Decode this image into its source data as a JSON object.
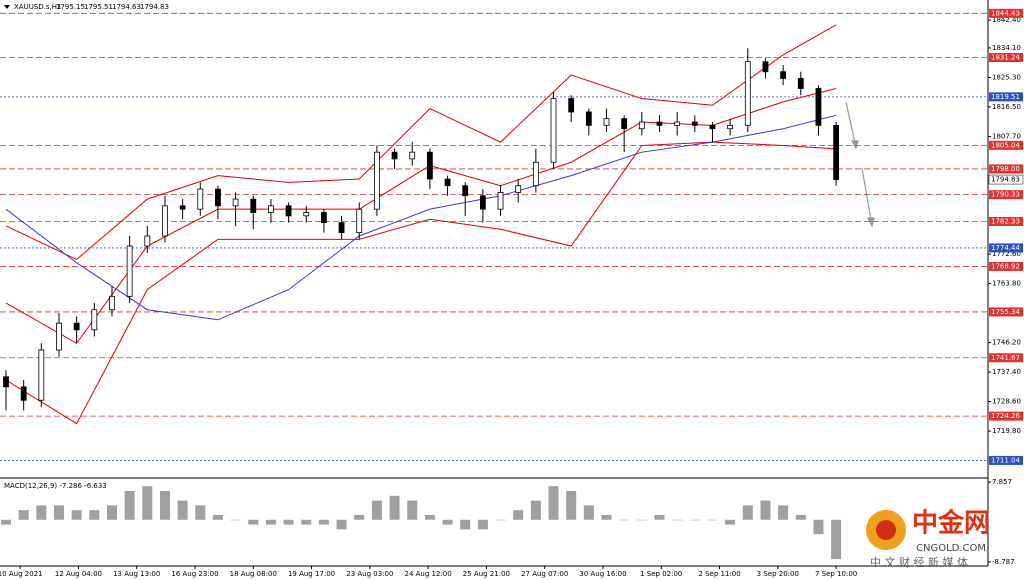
{
  "chart_data": [
    {
      "type": "candlestick",
      "symbol": "XAUUSD.s,H1",
      "quote": [
        1795.15,
        1795.51,
        1794.63,
        1794.83
      ],
      "open": [
        1736,
        1733,
        1729,
        1744,
        1752,
        1750,
        1756,
        1760,
        1775,
        1778,
        1787,
        1786,
        1792,
        1787,
        1789,
        1785,
        1787,
        1784,
        1785,
        1782,
        1779,
        1786,
        1803,
        1801,
        1803,
        1795,
        1793,
        1790,
        1786,
        1791,
        1793,
        1800,
        1819,
        1815,
        1811,
        1813,
        1810,
        1812,
        1811,
        1812,
        1811,
        1810,
        1811,
        1830,
        1827,
        1825,
        1822,
        1811
      ],
      "high": [
        1738,
        1735,
        1746,
        1755,
        1754,
        1758,
        1763,
        1778,
        1781,
        1790,
        1789,
        1794,
        1793,
        1791,
        1790,
        1789,
        1788,
        1787,
        1786,
        1784,
        1788,
        1805,
        1804,
        1806,
        1804,
        1796,
        1794,
        1792,
        1793,
        1795,
        1804,
        1821,
        1820,
        1816,
        1816,
        1814,
        1815,
        1814,
        1815,
        1814,
        1812,
        1813,
        1834,
        1831,
        1829,
        1827,
        1823,
        1812
      ],
      "low": [
        1726,
        1726,
        1727,
        1742,
        1746,
        1748,
        1754,
        1758,
        1773,
        1776,
        1783,
        1784,
        1783,
        1781,
        1780,
        1782,
        1782,
        1782,
        1779,
        1777,
        1777,
        1784,
        1798,
        1799,
        1792,
        1790,
        1784,
        1782,
        1784,
        1788,
        1791,
        1798,
        1812,
        1808,
        1809,
        1803,
        1808,
        1809,
        1808,
        1809,
        1806,
        1808,
        1809,
        1825,
        1823,
        1820,
        1808,
        1793
      ],
      "close": [
        1733,
        1729,
        1744,
        1752,
        1750,
        1756,
        1760,
        1775,
        1778,
        1787,
        1786,
        1792,
        1787,
        1789,
        1785,
        1787,
        1784,
        1785,
        1782,
        1779,
        1786,
        1803,
        1801,
        1803,
        1795,
        1793,
        1790,
        1786,
        1791,
        1793,
        1800,
        1819,
        1815,
        1811,
        1813,
        1810,
        1812,
        1811,
        1812,
        1811,
        1810,
        1811,
        1830,
        1827,
        1825,
        1822,
        1811,
        1794.83
      ],
      "lines": [
        {
          "color": "#e00000",
          "x": [
            0,
            4,
            8,
            12,
            16,
            20,
            24,
            28,
            32,
            36,
            40,
            44,
            47
          ],
          "values": [
            1781,
            1771,
            1789,
            1796,
            1794,
            1795,
            1816,
            1806,
            1826,
            1819,
            1817,
            1832,
            1841
          ]
        },
        {
          "color": "#e00000",
          "x": [
            0,
            4,
            8,
            12,
            16,
            20,
            24,
            28,
            32,
            36,
            40,
            44,
            47
          ],
          "values": [
            1758,
            1746,
            1775,
            1786,
            1786,
            1786,
            1799,
            1793,
            1800,
            1812,
            1811,
            1818,
            1822
          ]
        },
        {
          "color": "#e00000",
          "x": [
            0,
            4,
            8,
            12,
            16,
            20,
            24,
            28,
            32,
            36,
            40,
            44,
            47
          ],
          "values": [
            1735,
            1722,
            1762,
            1777,
            1777,
            1777,
            1783,
            1780,
            1775,
            1805,
            1806,
            1805,
            1804
          ]
        },
        {
          "color": "#3a3ad0",
          "x": [
            0,
            4,
            8,
            12,
            16,
            20,
            24,
            28,
            32,
            36,
            40,
            44,
            47
          ],
          "values": [
            1786,
            1770,
            1756,
            1753,
            1762,
            1778,
            1786,
            1790,
            1796,
            1803,
            1806,
            1810,
            1814
          ]
        }
      ],
      "levels": [
        1844.43,
        1831.24,
        1819.51,
        1805.04,
        1798.0,
        1790.33,
        1782.33,
        1774.44,
        1768.92,
        1755.34,
        1741.67,
        1724.26,
        1711.04
      ],
      "level_labels": [
        "1844.43",
        "1831.24",
        "1819.51",
        "1805.04",
        "1798.00",
        "1790.33",
        "1782.33",
        "1774.44",
        "1768.92",
        "1755.34",
        "1741.67",
        "1724.26",
        "1711.04"
      ],
      "level_colors": [
        "#e03030",
        "#e03030",
        "#3050c0",
        "#e03030",
        "#e03030",
        "#e03030",
        "#e03030",
        "#3050c0",
        "#e03030",
        "#e03030",
        "#e03030",
        "#e03030",
        "#3050c0"
      ],
      "xlim": [
        -0.34,
        55.6
      ],
      "ylim": [
        1705.8,
        1848.4
      ],
      "yticks": [
        {
          "value": 1842.4,
          "label": "1842.40"
        },
        {
          "value": 1834.1,
          "label": "1834.10"
        },
        {
          "value": 1825.3,
          "label": "1825.30"
        },
        {
          "value": 1816.5,
          "label": "1816.50"
        },
        {
          "value": 1807.7,
          "label": "1807.70"
        },
        {
          "value": 1772.6,
          "label": "1772.60"
        },
        {
          "value": 1763.8,
          "label": "1763.80"
        },
        {
          "value": 1746.2,
          "label": "1746.20"
        },
        {
          "value": 1737.4,
          "label": "1737.40"
        },
        {
          "value": 1728.6,
          "label": "1728.60"
        },
        {
          "value": 1719.8,
          "label": "1719.80"
        }
      ],
      "xticks": [
        {
          "value": 0.8,
          "label": "10 Aug 2021"
        },
        {
          "value": 4.1,
          "label": "12 Aug 04:00"
        },
        {
          "value": 7.4,
          "label": "13 Aug 13:00"
        },
        {
          "value": 10.7,
          "label": "16 Aug 23:00"
        },
        {
          "value": 14,
          "label": "18 Aug 08:00"
        },
        {
          "value": 17.3,
          "label": "19 Aug 17:00"
        },
        {
          "value": 20.6,
          "label": "23 Aug 03:00"
        },
        {
          "value": 23.9,
          "label": "24 Aug 12:00"
        },
        {
          "value": 27.2,
          "label": "25 Aug 21:00"
        },
        {
          "value": 30.5,
          "label": "27 Aug 07:00"
        },
        {
          "value": 33.8,
          "label": "30 Aug 16:00"
        },
        {
          "value": 37.1,
          "label": "1 Sep 02:00"
        },
        {
          "value": 40.4,
          "label": "2 Sep 11:00"
        },
        {
          "value": 43.7,
          "label": "3 Sep 20:00"
        },
        {
          "value": 47,
          "label": "7 Sep 10:00"
        }
      ]
    },
    {
      "type": "macd",
      "title": "MACD(12,26,9) -7.286 -6.633",
      "values": [
        -1,
        2,
        3,
        3,
        2,
        2,
        3,
        6,
        7,
        6,
        4,
        3,
        1,
        0,
        -1,
        -1,
        -1,
        -1,
        -1,
        -2,
        1,
        4,
        5,
        4,
        1,
        -1,
        -2,
        -2,
        0,
        2,
        4,
        7,
        6,
        3,
        1,
        0,
        0,
        1,
        0,
        0,
        0,
        -1,
        3,
        4,
        3,
        1,
        -3,
        -8.2
      ],
      "color": "#a0a0a0",
      "ylim": [
        -9.43,
        8.5
      ],
      "yticks": [
        7.857,
        -8.787
      ]
    }
  ],
  "watermark": {
    "brand": "中金网",
    "site": "CNGOLD.COM",
    "tagline": "中 文 财 经 新 媒 体"
  }
}
